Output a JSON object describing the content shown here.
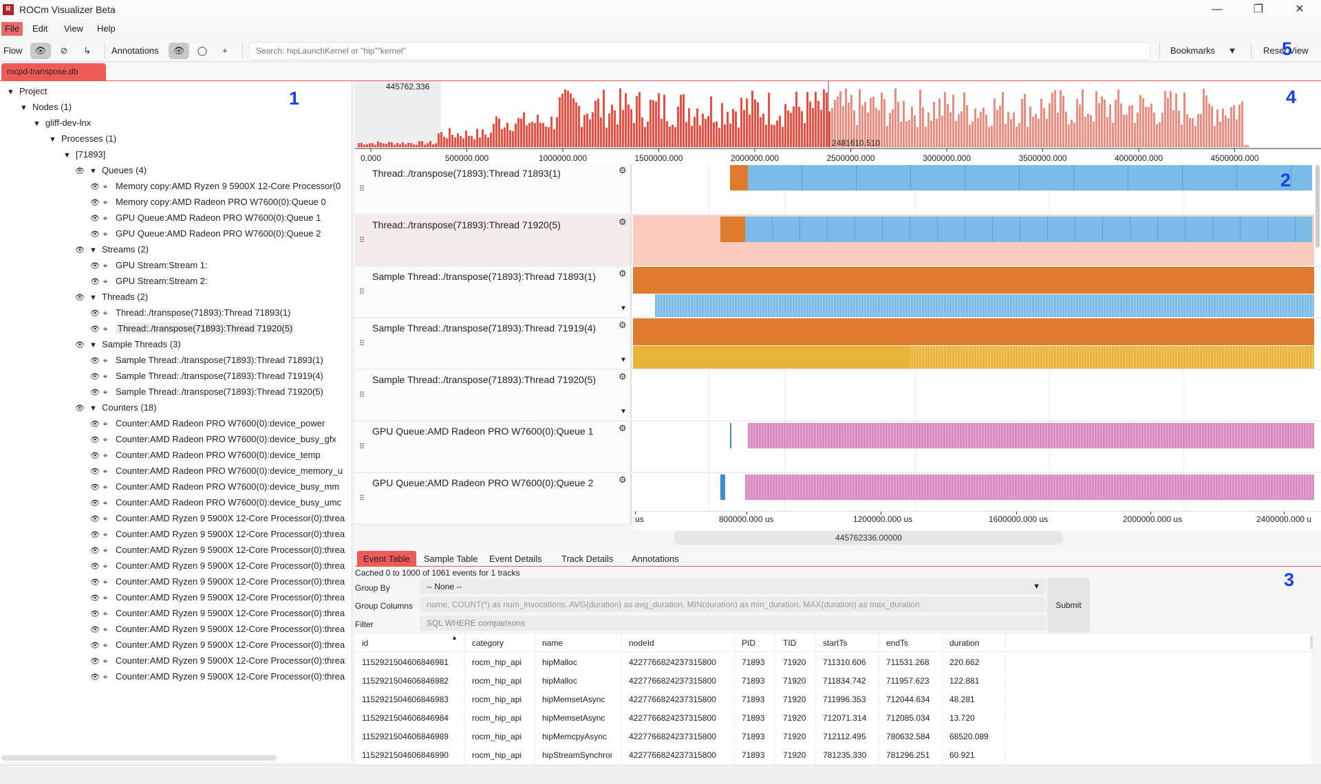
{
  "window": {
    "title": "ROCm Visualizer Beta",
    "logo_text": "R"
  },
  "menu": [
    "File",
    "Edit",
    "View",
    "Help"
  ],
  "toolbar": {
    "flow_label": "Flow",
    "annotations_label": "Annotations",
    "search_placeholder": "Search: hipLaunchKernel or \"hip\"\"kernel\"",
    "bookmarks_label": "Bookmarks",
    "reset_view_label": "Reset View"
  },
  "file_tab": "rocpd-transpose.db",
  "callouts": [
    "1",
    "2",
    "3",
    "4",
    "5"
  ],
  "tree": [
    {
      "level": 0,
      "twisty": "▼",
      "label": "Project"
    },
    {
      "level": 1,
      "twisty": "▼",
      "label": "Nodes (1)"
    },
    {
      "level": 2,
      "twisty": "▼",
      "label": "gliff-dev-lnx"
    },
    {
      "level": 3,
      "twisty": "▼",
      "label": "Processes (1)"
    },
    {
      "level": 4,
      "twisty": "▼",
      "label": "[71893]"
    },
    {
      "level": 5,
      "twisty": "▼",
      "eye": true,
      "label": "Queues (4)"
    },
    {
      "level": 6,
      "eye": true,
      "x": true,
      "label": "Memory copy:AMD Ryzen 9 5900X 12-Core Processor(0"
    },
    {
      "level": 6,
      "eye": true,
      "x": true,
      "label": "Memory copy:AMD Radeon PRO W7600(0):Queue 0"
    },
    {
      "level": 6,
      "eye": true,
      "x": true,
      "label": "GPU Queue:AMD Radeon PRO W7600(0):Queue 1"
    },
    {
      "level": 6,
      "eye": true,
      "x": true,
      "label": "GPU Queue:AMD Radeon PRO W7600(0):Queue 2"
    },
    {
      "level": 5,
      "twisty": "▼",
      "eye": true,
      "label": "Streams (2)"
    },
    {
      "level": 6,
      "eye": true,
      "x": true,
      "label": "GPU Stream:Stream 1:"
    },
    {
      "level": 6,
      "eye": true,
      "x": true,
      "label": "GPU Stream:Stream 2:"
    },
    {
      "level": 5,
      "twisty": "▼",
      "eye": true,
      "label": "Threads (2)"
    },
    {
      "level": 6,
      "eye": true,
      "x": true,
      "label": "Thread:./transpose(71893):Thread 71893(1)"
    },
    {
      "level": 6,
      "eye": true,
      "x": true,
      "label": "Thread:./transpose(71893):Thread 71920(5)",
      "selected": true
    },
    {
      "level": 5,
      "twisty": "▼",
      "eye": true,
      "label": "Sample Threads (3)"
    },
    {
      "level": 6,
      "eye": true,
      "x": true,
      "label": "Sample Thread:./transpose(71893):Thread 71893(1)"
    },
    {
      "level": 6,
      "eye": true,
      "x": true,
      "label": "Sample Thread:./transpose(71893):Thread 71919(4)"
    },
    {
      "level": 6,
      "eye": true,
      "x": true,
      "label": "Sample Thread:./transpose(71893):Thread 71920(5)"
    },
    {
      "level": 5,
      "twisty": "▼",
      "eye": true,
      "label": "Counters (18)"
    },
    {
      "level": 6,
      "eye": true,
      "x": true,
      "label": "Counter:AMD Radeon PRO W7600(0):device_power"
    },
    {
      "level": 6,
      "eye": true,
      "x": true,
      "label": "Counter:AMD Radeon PRO W7600(0):device_busy_gfx"
    },
    {
      "level": 6,
      "eye": true,
      "x": true,
      "label": "Counter:AMD Radeon PRO W7600(0):device_temp"
    },
    {
      "level": 6,
      "eye": true,
      "x": true,
      "label": "Counter:AMD Radeon PRO W7600(0):device_memory_u"
    },
    {
      "level": 6,
      "eye": true,
      "x": true,
      "label": "Counter:AMD Radeon PRO W7600(0):device_busy_mm"
    },
    {
      "level": 6,
      "eye": true,
      "x": true,
      "label": "Counter:AMD Radeon PRO W7600(0):device_busy_umc"
    },
    {
      "level": 6,
      "eye": true,
      "x": true,
      "label": "Counter:AMD Ryzen 9 5900X 12-Core Processor(0):threa"
    },
    {
      "level": 6,
      "eye": true,
      "x": true,
      "label": "Counter:AMD Ryzen 9 5900X 12-Core Processor(0):threa"
    },
    {
      "level": 6,
      "eye": true,
      "x": true,
      "label": "Counter:AMD Ryzen 9 5900X 12-Core Processor(0):threa"
    },
    {
      "level": 6,
      "eye": true,
      "x": true,
      "label": "Counter:AMD Ryzen 9 5900X 12-Core Processor(0):threa"
    },
    {
      "level": 6,
      "eye": true,
      "x": true,
      "label": "Counter:AMD Ryzen 9 5900X 12-Core Processor(0):threa"
    },
    {
      "level": 6,
      "eye": true,
      "x": true,
      "label": "Counter:AMD Ryzen 9 5900X 12-Core Processor(0):threa"
    },
    {
      "level": 6,
      "eye": true,
      "x": true,
      "label": "Counter:AMD Ryzen 9 5900X 12-Core Processor(0):threa"
    },
    {
      "level": 6,
      "eye": true,
      "x": true,
      "label": "Counter:AMD Ryzen 9 5900X 12-Core Processor(0):threa"
    },
    {
      "level": 6,
      "eye": true,
      "x": true,
      "label": "Counter:AMD Ryzen 9 5900X 12-Core Processor(0):threa"
    },
    {
      "level": 6,
      "eye": true,
      "x": true,
      "label": "Counter:AMD Ryzen 9 5900X 12-Core Processor(0):threa"
    },
    {
      "level": 6,
      "eye": true,
      "x": true,
      "label": "Counter:AMD Ryzen 9 5900X 12-Core Processor(0):threa"
    }
  ],
  "histogram": {
    "max_label": "445762.336",
    "cursor_label": "2481610.510",
    "ticks": [
      "0.000",
      "500000.000",
      "1000000.000",
      "1500000.000",
      "2000000.000",
      "2500000.000",
      "3000000.000",
      "3500000.000",
      "4000000.000",
      "4500000.000",
      "50"
    ]
  },
  "tracks": [
    {
      "name": "Thread:./transpose(71893):Thread 71893(1)",
      "collapse": false
    },
    {
      "name": "Thread:./transpose(71893):Thread 71920(5)",
      "collapse": false
    },
    {
      "name": "Sample Thread:./transpose(71893):Thread 71893(1)",
      "collapse": true
    },
    {
      "name": "Sample Thread:./transpose(71893):Thread 71919(4)",
      "collapse": true
    },
    {
      "name": "Sample Thread:./transpose(71893):Thread 71920(5)",
      "collapse": true
    },
    {
      "name": "GPU Queue:AMD Radeon PRO W7600(0):Queue 1",
      "collapse": false
    },
    {
      "name": "GPU Queue:AMD Radeon PRO W7600(0):Queue 2",
      "collapse": false
    }
  ],
  "time_axis": {
    "ticks": [
      "us",
      "800000.000 us",
      "1200000.000 us",
      "1600000.000 us",
      "2000000.000 us",
      "2400000.000 u"
    ],
    "zoom_value": "445762336.00000"
  },
  "colors": {
    "accent": "#ee5a55",
    "orange": "#e07a2e",
    "blue": "#7bbbe8",
    "pink": "#d98cc0",
    "yellow": "#e8b53a",
    "salmon": "#fcc9bd"
  },
  "bottom": {
    "tabs": [
      "Event Table",
      "Sample Table",
      "Event Details",
      "Track Details",
      "Annotations"
    ],
    "cached_text": "Cached 0 to 1000 of 1061 events for 1 tracks",
    "group_by_label": "Group By",
    "group_by_value": "-- None --",
    "group_columns_label": "Group Columns",
    "group_columns_placeholder": "name, COUNT(*) as num_invocations, AVG(duration) as avg_duration, MIN(duration) as min_duration, MAX(duration) as max_duration",
    "filter_label": "Filter",
    "filter_placeholder": "SQL WHERE comparisons",
    "submit_label": "Submit"
  },
  "table": {
    "columns": [
      "id",
      "category",
      "name",
      "nodeId",
      "PID",
      "TID",
      "startTs",
      "endTs",
      "duration"
    ],
    "rows": [
      [
        "1152921504606846981",
        "rocm_hip_api",
        "hipMalloc",
        "4227766824237315800",
        "71893",
        "71920",
        "711310.606",
        "711531.268",
        "220.662"
      ],
      [
        "1152921504606846982",
        "rocm_hip_api",
        "hipMalloc",
        "4227766824237315800",
        "71893",
        "71920",
        "711834.742",
        "711957.623",
        "122.881"
      ],
      [
        "1152921504606846983",
        "rocm_hip_api",
        "hipMemsetAsync",
        "4227766824237315800",
        "71893",
        "71920",
        "711996.353",
        "712044.634",
        "48.281"
      ],
      [
        "1152921504606846984",
        "rocm_hip_api",
        "hipMemsetAsync",
        "4227766824237315800",
        "71893",
        "71920",
        "712071.314",
        "712085.034",
        "13.720"
      ],
      [
        "1152921504606846989",
        "rocm_hip_api",
        "hipMemcpyAsync",
        "4227766824237315800",
        "71893",
        "71920",
        "712112.495",
        "780632.584",
        "68520.089"
      ],
      [
        "1152921504606846990",
        "rocm_hip_api",
        "hipStreamSynchroi",
        "4227766824237315800",
        "71893",
        "71920",
        "781235.330",
        "781296.251",
        "60.921"
      ]
    ]
  }
}
